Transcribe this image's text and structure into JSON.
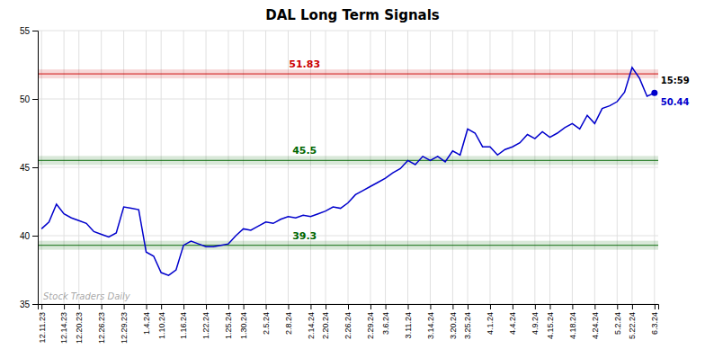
{
  "chart_data": {
    "type": "line",
    "title": "DAL Long Term Signals",
    "categories": [
      "12.11.23",
      null,
      null,
      "12.14.23",
      null,
      "12.20.23",
      null,
      null,
      "12.26.23",
      null,
      null,
      "12.29.23",
      null,
      null,
      "1.4.24",
      null,
      "1.10.24",
      null,
      null,
      "1.16.24",
      null,
      null,
      "1.22.24",
      null,
      null,
      "1.25.24",
      null,
      "1.30.24",
      null,
      null,
      "2.5.24",
      null,
      null,
      "2.8.24",
      null,
      null,
      "2.14.24",
      null,
      "2.20.24",
      null,
      null,
      "2.26.24",
      null,
      null,
      "2.29.24",
      null,
      "3.6.24",
      null,
      null,
      "3.11.24",
      null,
      null,
      "3.14.24",
      null,
      null,
      "3.20.24",
      null,
      "3.25.24",
      null,
      null,
      "4.1.24",
      null,
      null,
      "4.4.24",
      null,
      null,
      "4.9.24",
      null,
      "4.15.24",
      null,
      null,
      "4.18.24",
      null,
      null,
      "4.24.24",
      null,
      null,
      "5.2.24",
      null,
      "5.22.24",
      null,
      null,
      "6.3.24"
    ],
    "values": [
      40.5,
      41.0,
      42.3,
      41.6,
      41.3,
      41.1,
      40.9,
      40.3,
      40.1,
      39.9,
      40.2,
      42.1,
      42.0,
      41.9,
      38.8,
      38.5,
      37.3,
      37.1,
      37.5,
      39.3,
      39.6,
      39.4,
      39.2,
      39.2,
      39.3,
      39.4,
      40.0,
      40.5,
      40.4,
      40.7,
      41.0,
      40.9,
      41.2,
      41.4,
      41.3,
      41.5,
      41.4,
      41.6,
      41.8,
      42.1,
      42.0,
      42.4,
      43.0,
      43.3,
      43.6,
      43.9,
      44.2,
      44.6,
      44.9,
      45.5,
      45.2,
      45.8,
      45.5,
      45.8,
      45.4,
      46.2,
      45.9,
      47.8,
      47.5,
      46.5,
      46.5,
      45.9,
      46.3,
      46.5,
      46.8,
      47.4,
      47.1,
      47.6,
      47.2,
      47.5,
      47.9,
      48.2,
      47.8,
      48.8,
      48.2,
      49.3,
      49.5,
      49.8,
      50.5,
      52.3,
      51.5,
      50.2,
      50.44
    ],
    "color": "#0000cc",
    "reference_lines": [
      {
        "value": 51.83,
        "label": "51.83",
        "color": "#cc0000"
      },
      {
        "value": 45.5,
        "label": "45.5",
        "color": "#006600"
      },
      {
        "value": 39.3,
        "label": "39.3",
        "color": "#006600"
      }
    ],
    "annotations": [
      "15:59",
      "50.44"
    ],
    "watermark": "Stock Traders Daily",
    "ylim": [
      35,
      55
    ],
    "yticks": [
      35,
      40,
      45,
      50,
      55
    ],
    "grid": true
  }
}
